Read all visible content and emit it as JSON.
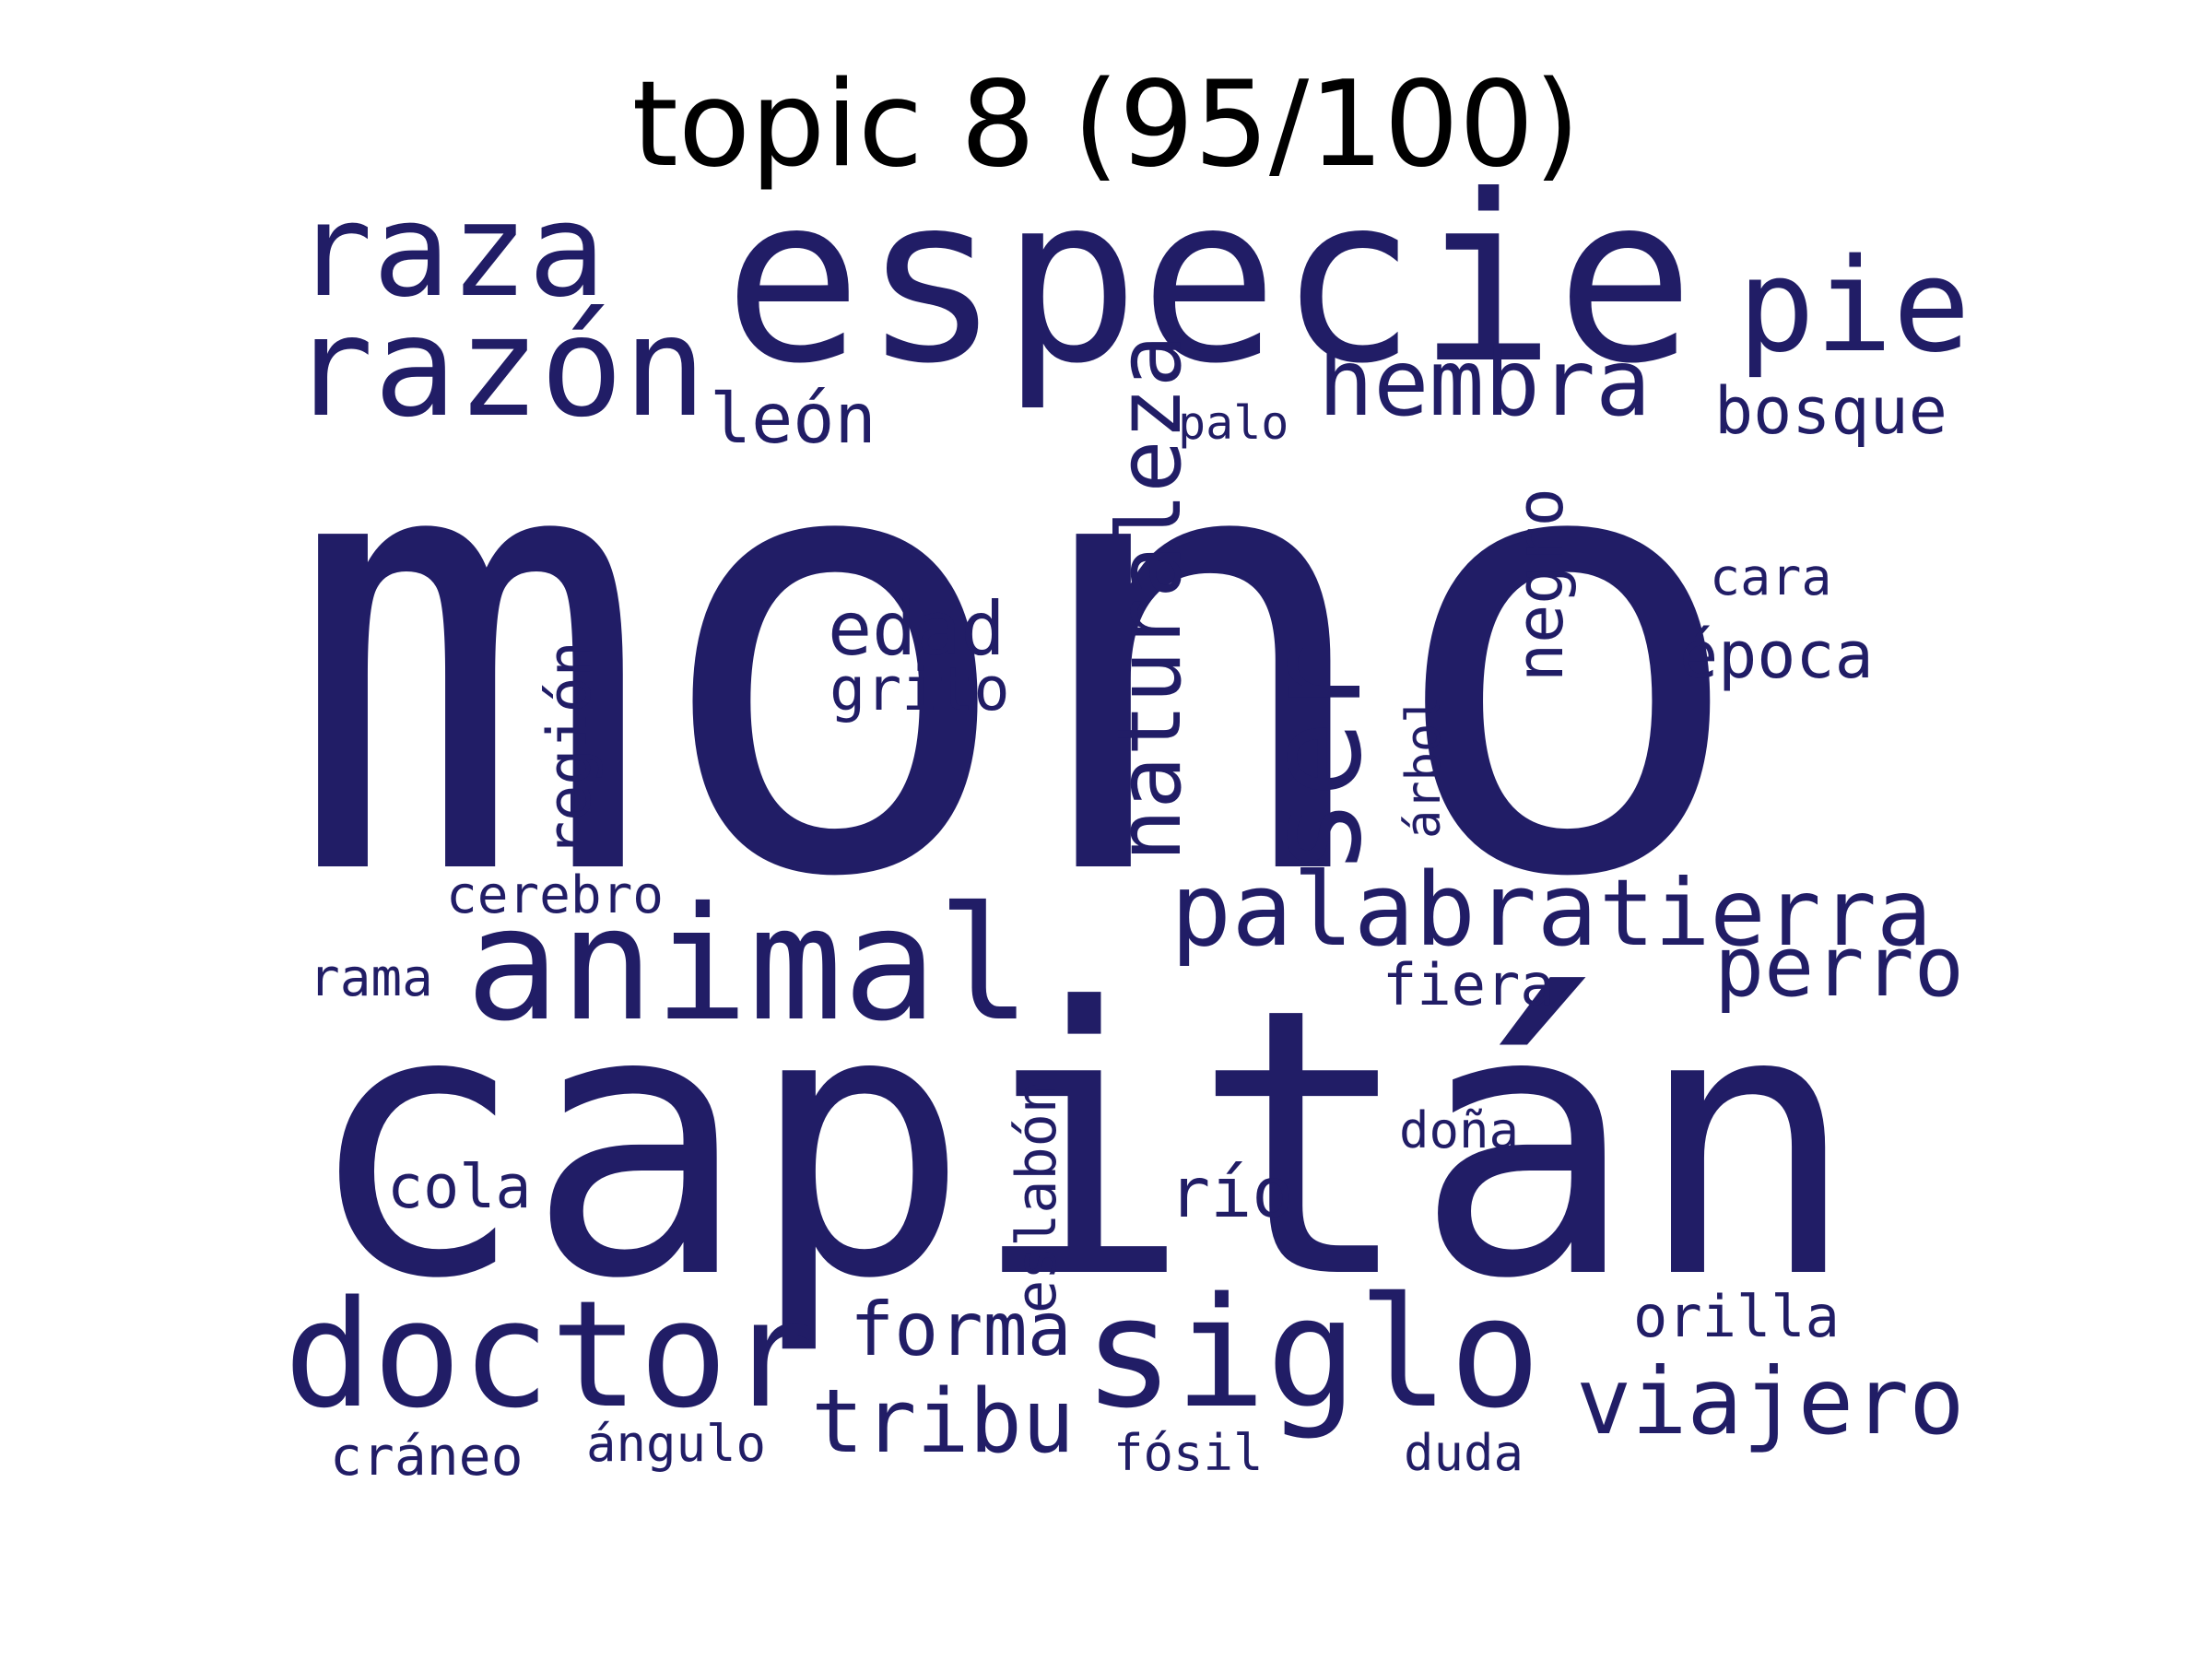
{
  "title": "topic 8 (95/100)",
  "word_color": "#211d66",
  "words": [
    {
      "text": "mono",
      "weight": 1.0
    },
    {
      "text": "capitán",
      "weight": 0.78
    },
    {
      "text": "especie",
      "weight": 0.5
    },
    {
      "text": "animal",
      "weight": 0.3
    },
    {
      "text": "siglo",
      "weight": 0.27
    },
    {
      "text": "doctor",
      "weight": 0.27
    },
    {
      "text": "razón",
      "weight": 0.25
    },
    {
      "text": "raza",
      "weight": 0.24
    },
    {
      "text": "ser",
      "weight": 0.24
    },
    {
      "text": "pie",
      "weight": 0.23
    },
    {
      "text": "palabra",
      "weight": 0.2
    },
    {
      "text": "naturaleza",
      "weight": 0.19
    },
    {
      "text": "hembra",
      "weight": 0.19
    },
    {
      "text": "tierra",
      "weight": 0.18
    },
    {
      "text": "viajero",
      "weight": 0.18
    },
    {
      "text": "tribu",
      "weight": 0.17
    },
    {
      "text": "perro",
      "weight": 0.16
    },
    {
      "text": "edad",
      "weight": 0.15
    },
    {
      "text": "forma",
      "weight": 0.14
    },
    {
      "text": "negro",
      "weight": 0.13
    },
    {
      "text": "león",
      "weight": 0.13
    },
    {
      "text": "bosque",
      "weight": 0.13
    },
    {
      "text": "río",
      "weight": 0.13
    },
    {
      "text": "época",
      "weight": 0.12
    },
    {
      "text": "región",
      "weight": 0.12
    },
    {
      "text": "eslabón",
      "weight": 0.12
    },
    {
      "text": "grito",
      "weight": 0.12
    },
    {
      "text": "cola",
      "weight": 0.12
    },
    {
      "text": "orilla",
      "weight": 0.12
    },
    {
      "text": "fiera",
      "weight": 0.12
    },
    {
      "text": "cráneo",
      "weight": 0.11
    },
    {
      "text": "rama",
      "weight": 0.1
    },
    {
      "text": "cerebro",
      "weight": 0.1
    },
    {
      "text": "árbol",
      "weight": 0.1
    },
    {
      "text": "cara",
      "weight": 0.1
    },
    {
      "text": "ángulo",
      "weight": 0.1
    },
    {
      "text": "fósil",
      "weight": 0.1
    },
    {
      "text": "duda",
      "weight": 0.1
    },
    {
      "text": "doña",
      "weight": 0.1
    },
    {
      "text": "palo",
      "weight": 0.09
    }
  ]
}
